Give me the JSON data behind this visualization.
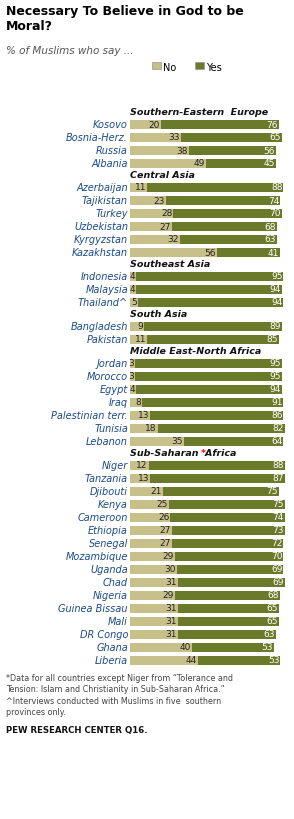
{
  "title": "Necessary To Believe in God to be\nMoral?",
  "subtitle": "% of Muslims who say ...",
  "legend_no": "No",
  "legend_yes": "Yes",
  "color_no": "#c8c08a",
  "color_yes": "#6b7a2a",
  "background": "#ffffff",
  "sections": [
    {
      "label": "Southern-Eastern  Europe",
      "label_has_asterisk": false,
      "countries": [
        "Kosovo",
        "Bosnia-Herz.",
        "Russia",
        "Albania"
      ],
      "no": [
        20,
        33,
        38,
        49
      ],
      "yes": [
        76,
        65,
        56,
        45
      ]
    },
    {
      "label": "Central Asia",
      "label_has_asterisk": false,
      "countries": [
        "Azerbaijan",
        "Tajikistan",
        "Turkey",
        "Uzbekistan",
        "Kyrgyzstan",
        "Kazakhstan"
      ],
      "no": [
        11,
        23,
        28,
        27,
        32,
        56
      ],
      "yes": [
        88,
        74,
        70,
        68,
        63,
        41
      ]
    },
    {
      "label": "Southeast Asia",
      "label_has_asterisk": false,
      "countries": [
        "Indonesia",
        "Malaysia",
        "Thailand^"
      ],
      "no": [
        4,
        4,
        5
      ],
      "yes": [
        95,
        94,
        94
      ]
    },
    {
      "label": "South Asia",
      "label_has_asterisk": false,
      "countries": [
        "Bangladesh",
        "Pakistan"
      ],
      "no": [
        9,
        11
      ],
      "yes": [
        89,
        85
      ]
    },
    {
      "label": "Middle East-North Africa",
      "label_has_asterisk": false,
      "countries": [
        "Jordan",
        "Morocco",
        "Egypt",
        "Iraq",
        "Palestinian terr.",
        "Tunisia",
        "Lebanon"
      ],
      "no": [
        3,
        3,
        4,
        8,
        13,
        18,
        35
      ],
      "yes": [
        95,
        95,
        94,
        91,
        86,
        82,
        64
      ]
    },
    {
      "label": "Sub-Saharan  Africa",
      "label_has_asterisk": true,
      "countries": [
        "Niger",
        "Tanzania",
        "Djibouti",
        "Kenya",
        "Cameroon",
        "Ethiopia",
        "Senegal",
        "Mozambique",
        "Uganda",
        "Chad",
        "Nigeria",
        "Guinea Bissau",
        "Mali",
        "DR Congo",
        "Ghana",
        "Liberia"
      ],
      "no": [
        12,
        13,
        21,
        25,
        26,
        27,
        27,
        29,
        30,
        31,
        29,
        31,
        31,
        31,
        40,
        44
      ],
      "yes": [
        88,
        87,
        75,
        75,
        74,
        73,
        72,
        70,
        69,
        69,
        68,
        65,
        65,
        63,
        53,
        53
      ]
    }
  ],
  "footnote": "*Data for all countries except Niger from “Tolerance and\nTension: Islam and Christianity in Sub-Saharan Africa.”\n^Interviews conducted with Muslims in five  southern\nprovinces only.",
  "source": "PEW RESEARCH CENTER Q16."
}
